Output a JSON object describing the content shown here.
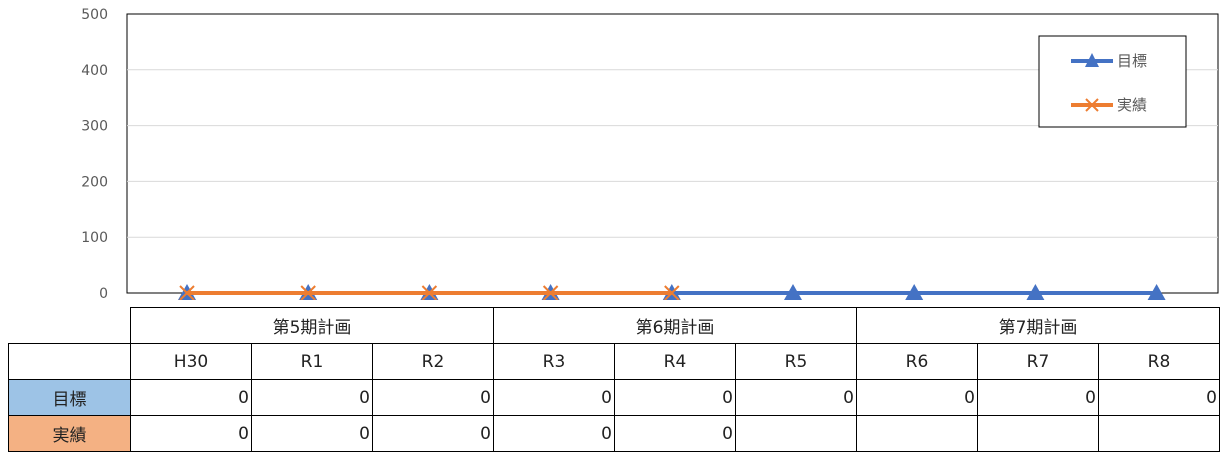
{
  "colors": {
    "target": "#4472c4",
    "actual": "#ed7d31",
    "target_header_bg": "#9dc3e6",
    "actual_header_bg": "#f4b183",
    "grid": "#d9d9d9"
  },
  "chart_data": {
    "type": "line",
    "categories": [
      "H30",
      "R1",
      "R2",
      "R3",
      "R4",
      "R5",
      "R6",
      "R7",
      "R8"
    ],
    "series": [
      {
        "name": "目標",
        "values": [
          0,
          0,
          0,
          0,
          0,
          0,
          0,
          0,
          0
        ],
        "marker": "triangle",
        "color": "#4472c4"
      },
      {
        "name": "実績",
        "values": [
          0,
          0,
          0,
          0,
          0,
          null,
          null,
          null,
          null
        ],
        "marker": "x",
        "color": "#ed7d31"
      }
    ],
    "ylim": [
      0,
      500
    ],
    "yticks": [
      "0",
      "100",
      "200",
      "300",
      "400",
      "500"
    ],
    "grid": true,
    "legend": "top-right"
  },
  "table": {
    "groups": [
      "第5期計画",
      "第6期計画",
      "第7期計画"
    ],
    "years": [
      "H30",
      "R1",
      "R2",
      "R3",
      "R4",
      "R5",
      "R6",
      "R7",
      "R8"
    ],
    "row_labels": {
      "target": "目標",
      "actual": "実績"
    },
    "target_values": [
      "0",
      "0",
      "0",
      "0",
      "0",
      "0",
      "0",
      "0",
      "0"
    ],
    "actual_values": [
      "0",
      "0",
      "0",
      "0",
      "0",
      "",
      "",
      "",
      ""
    ]
  }
}
